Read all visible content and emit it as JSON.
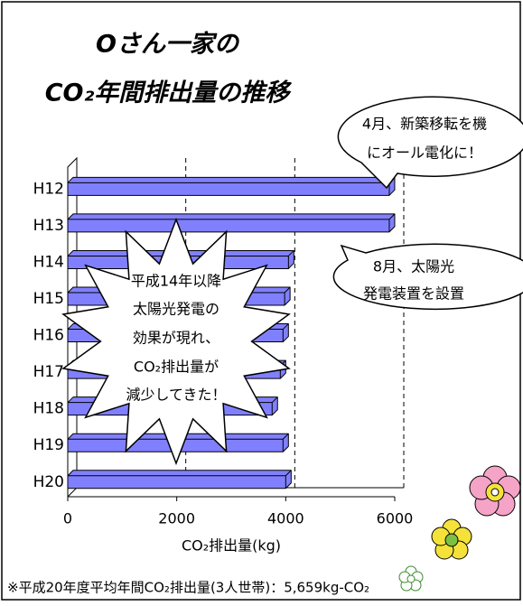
{
  "chart_data": {
    "type": "hbar",
    "title": [
      "Oさん一家の",
      "CO₂年間排出量の推移"
    ],
    "categories": [
      "H12",
      "H13",
      "H14",
      "H15",
      "H16",
      "H17",
      "H18",
      "H19",
      "H20"
    ],
    "values": [
      5900,
      5900,
      4050,
      3980,
      3950,
      3900,
      3750,
      3950,
      4000
    ],
    "color": "#8080ff",
    "xlim": [
      0,
      6000
    ],
    "xticks": [
      0,
      2000,
      4000,
      6000
    ],
    "grid": true,
    "xlabel": "CO₂排出量(kg)",
    "annotations": [
      [
        "4月、新築移転を機",
        "にオール電化に！"
      ],
      [
        "8月、太陽光",
        "発電装置を設置"
      ],
      [
        "平成14年以降",
        "太陽光発電の",
        "効果が現れ、",
        "CO₂排出量が",
        "減少してきた！"
      ]
    ],
    "note": "※平成20年度平均年間CO₂排出量(3人世帯)：5,659kg-CO₂"
  }
}
